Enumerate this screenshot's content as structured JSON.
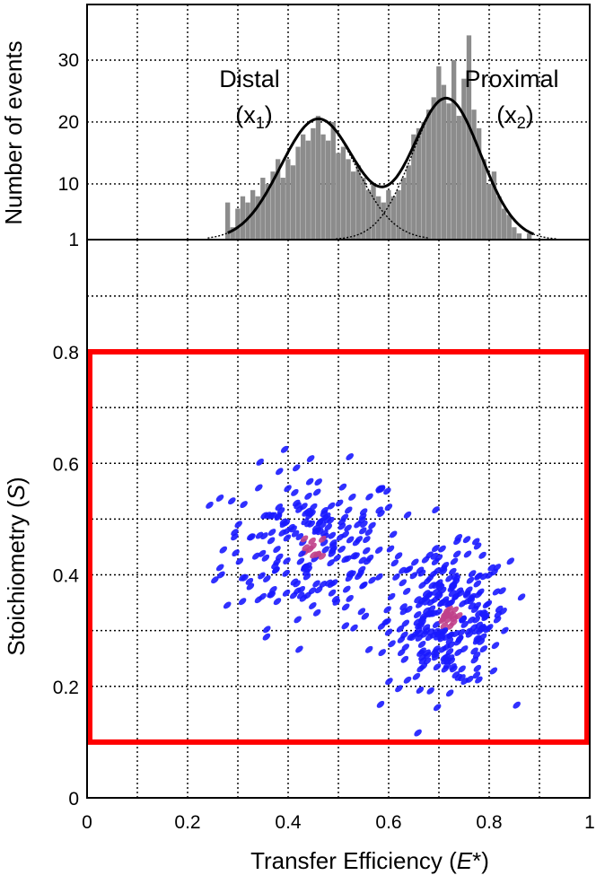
{
  "chart_data": [
    {
      "type": "bar",
      "panel": "histogram",
      "ylabel": "Number of events",
      "yticks": [
        "1",
        "10",
        "20",
        "30"
      ],
      "xlim": [
        0,
        1
      ],
      "ylim": [
        1,
        38
      ],
      "bin_width": 0.01,
      "bins_E": [
        0.28,
        0.29,
        0.3,
        0.31,
        0.32,
        0.33,
        0.34,
        0.35,
        0.36,
        0.37,
        0.38,
        0.39,
        0.4,
        0.41,
        0.42,
        0.43,
        0.44,
        0.45,
        0.46,
        0.47,
        0.48,
        0.49,
        0.5,
        0.51,
        0.52,
        0.53,
        0.54,
        0.55,
        0.56,
        0.57,
        0.58,
        0.59,
        0.6,
        0.61,
        0.62,
        0.63,
        0.64,
        0.65,
        0.66,
        0.67,
        0.68,
        0.69,
        0.7,
        0.71,
        0.72,
        0.73,
        0.74,
        0.75,
        0.76,
        0.77,
        0.78,
        0.79,
        0.8,
        0.81,
        0.82,
        0.83,
        0.84,
        0.85,
        0.86,
        0.87,
        0.88
      ],
      "counts": [
        7,
        3,
        6,
        8,
        7,
        9,
        8,
        11,
        10,
        12,
        14,
        11,
        14,
        13,
        16,
        18,
        17,
        19,
        21,
        18,
        17,
        20,
        15,
        16,
        14,
        12,
        13,
        11,
        9,
        10,
        8,
        7,
        9,
        8,
        9,
        11,
        13,
        18,
        19,
        20,
        22,
        24,
        29,
        26,
        23,
        30,
        21,
        27,
        34,
        22,
        19,
        14,
        10,
        12,
        8,
        6,
        5,
        3,
        2,
        1,
        2
      ],
      "fit_components": [
        {
          "name": "Distal",
          "subscript": "1",
          "label_prefix": "(x",
          "label_suffix": ")",
          "center": 0.46,
          "sigma": 0.075,
          "amplitude": 19.5
        },
        {
          "name": "Proximal",
          "subscript": "2",
          "label_prefix": "(x",
          "label_suffix": ")",
          "center": 0.715,
          "sigma": 0.068,
          "amplitude": 22.8
        }
      ],
      "colors": {
        "bars": "#8c8c8c",
        "fit": "#000000"
      }
    },
    {
      "type": "scatter",
      "panel": "ES-plot",
      "xlabel_prefix": "Transfer Efficiency (",
      "xlabel_var": "E",
      "xlabel_suffix": "*)",
      "ylabel_prefix": "Stoichiometry (",
      "ylabel_var": "S",
      "ylabel_suffix": ")",
      "xticks": [
        "0",
        "0.2",
        "0.4",
        "0.6",
        "0.8",
        "1"
      ],
      "yticks": [
        "0",
        "0.2",
        "0.4",
        "0.6",
        "0.8"
      ],
      "xlim": [
        0,
        1
      ],
      "ylim": [
        0,
        1
      ],
      "selection_box": {
        "E": [
          0,
          1
        ],
        "S": [
          0.1,
          0.8
        ],
        "color": "#ff0000"
      },
      "clusters": [
        {
          "E_center": 0.45,
          "S_center": 0.45,
          "E_spread": 0.09,
          "S_spread": 0.07,
          "points": 230
        },
        {
          "E_center": 0.72,
          "S_center": 0.32,
          "E_spread": 0.06,
          "S_spread": 0.06,
          "points": 270
        }
      ],
      "colors": {
        "points": "#1a1aff",
        "dense": "#c0408a"
      }
    }
  ],
  "peaks": {
    "distal": {
      "name": "Distal",
      "prefix": "(x",
      "sub": "1",
      "suffix": ")"
    },
    "proximal": {
      "name": "Proximal",
      "prefix": "(x",
      "sub": "2",
      "suffix": ")"
    }
  }
}
